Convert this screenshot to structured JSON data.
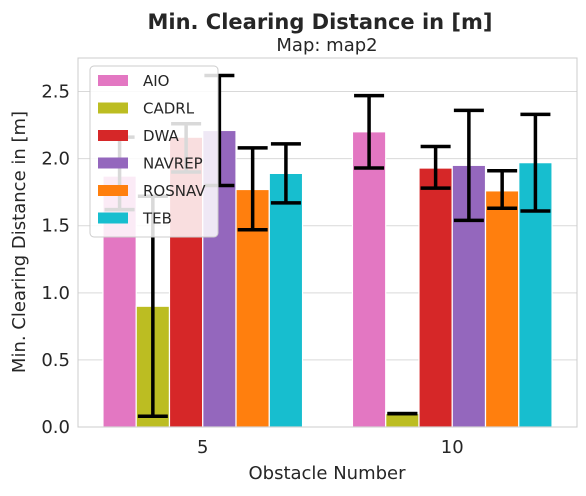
{
  "chart_data": {
    "type": "bar",
    "title": "Min. Clearing Distance in [m]",
    "subtitle": "Map: map2",
    "xlabel": "Obstacle Number",
    "ylabel": "Min. Clearing Distance in [m]",
    "categories": [
      "5",
      "10"
    ],
    "ylim": [
      0,
      2.75
    ],
    "yticks": [
      "0.0",
      "0.5",
      "1.0",
      "1.5",
      "2.0",
      "2.5"
    ],
    "grid": true,
    "legend_position": "top-left",
    "series": [
      {
        "name": "AIO",
        "color": "#e377c2",
        "values": [
          1.87,
          2.2
        ],
        "err_low": [
          1.62,
          1.93
        ],
        "err_high": [
          2.16,
          2.47
        ]
      },
      {
        "name": "CADRL",
        "color": "#bcbd22",
        "values": [
          0.9,
          0.1
        ],
        "err_low": [
          0.08,
          0.1
        ],
        "err_high": [
          1.72,
          0.1
        ]
      },
      {
        "name": "DWA",
        "color": "#d62728",
        "values": [
          2.16,
          1.93
        ],
        "err_low": [
          1.9,
          1.78
        ],
        "err_high": [
          2.26,
          2.09
        ]
      },
      {
        "name": "NAVREP",
        "color": "#9467bd",
        "values": [
          2.21,
          1.95
        ],
        "err_low": [
          1.8,
          1.54
        ],
        "err_high": [
          2.62,
          2.36
        ]
      },
      {
        "name": "ROSNAV",
        "color": "#ff7f0e",
        "values": [
          1.77,
          1.76
        ],
        "err_low": [
          1.47,
          1.63
        ],
        "err_high": [
          2.08,
          1.91
        ]
      },
      {
        "name": "TEB",
        "color": "#17becf",
        "values": [
          1.89,
          1.97
        ],
        "err_low": [
          1.67,
          1.61
        ],
        "err_high": [
          2.11,
          2.33
        ]
      }
    ]
  }
}
